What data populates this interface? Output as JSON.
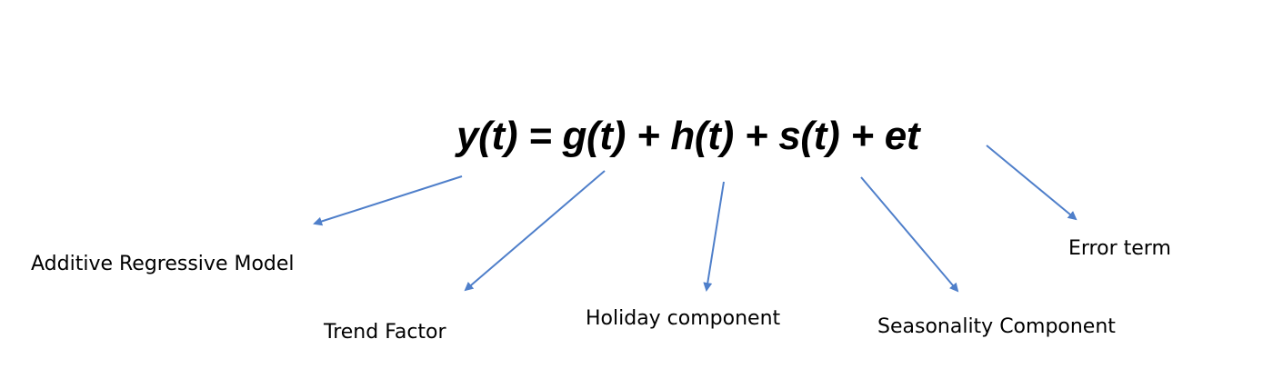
{
  "equation": {
    "text": "y(t) = g(t) + h(t) + s(t) + et"
  },
  "labels": {
    "additive_model": "Additive Regressive Model",
    "trend": "Trend Factor",
    "holiday": "Holiday component",
    "seasonality": "Seasonality Component",
    "error": "Error term"
  },
  "colors": {
    "arrow": "#4f7fca",
    "text": "#000000"
  }
}
